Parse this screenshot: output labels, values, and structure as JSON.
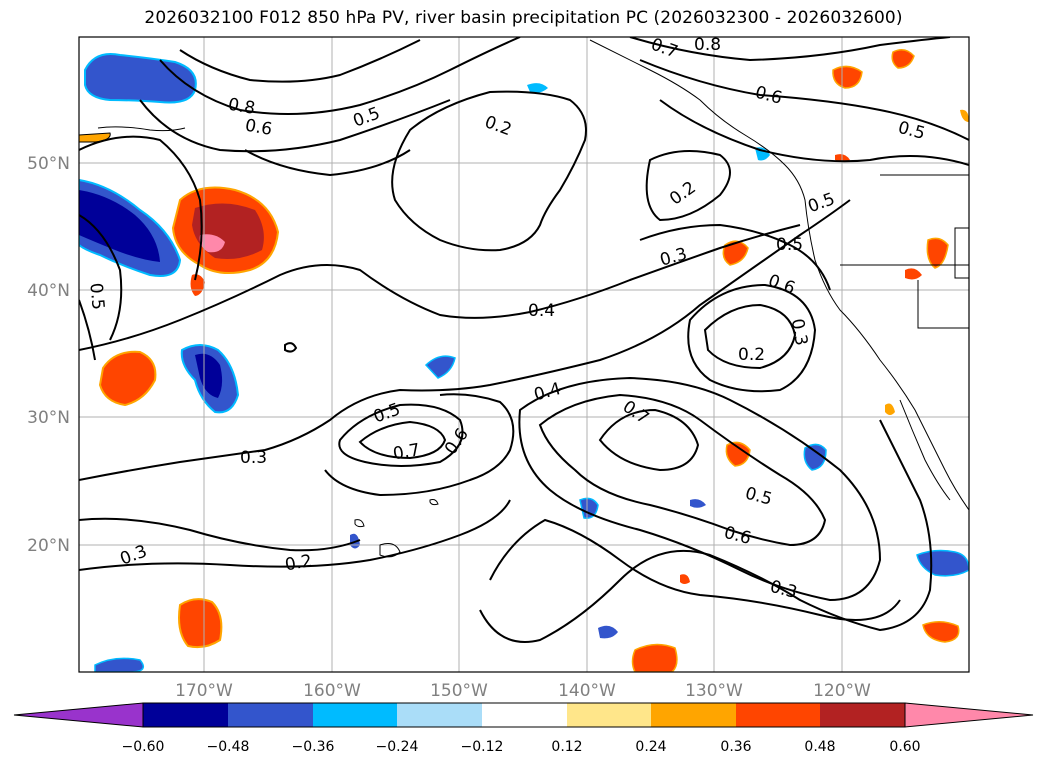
{
  "title": "2026032100 F012 850 hPa PV, river basin precipitation PC (2026032300 - 2026032600)",
  "lat_ticks": [
    "50°N",
    "40°N",
    "30°N",
    "20°N"
  ],
  "lon_ticks": [
    "170°W",
    "160°W",
    "150°W",
    "140°W",
    "130°W",
    "120°W"
  ],
  "colorbar": {
    "ticks": [
      "−0.60",
      "−0.48",
      "−0.36",
      "−0.24",
      "−0.12",
      "0.12",
      "0.24",
      "0.36",
      "0.48",
      "0.60"
    ],
    "colors": [
      "#9933cc",
      "#000099",
      "#3355cc",
      "#00bbff",
      "#aaddf8",
      "#ffffff",
      "#ffe68a",
      "#ffa500",
      "#ff4500",
      "#b22222",
      "#ff88aa"
    ]
  },
  "contour_labels": [
    "0.8",
    "0.7",
    "0.6",
    "0.5",
    "0.2",
    "0.2",
    "0.3",
    "0.4",
    "0.4",
    "0.5",
    "0.7",
    "0.6",
    "0.3",
    "0.3",
    "0.2",
    "0.7",
    "0.5",
    "0.6",
    "0.3",
    "0.2",
    "0.3",
    "0.6",
    "0.5",
    "0.5",
    "0.6",
    "0.8",
    "0.5",
    "0.5"
  ]
}
